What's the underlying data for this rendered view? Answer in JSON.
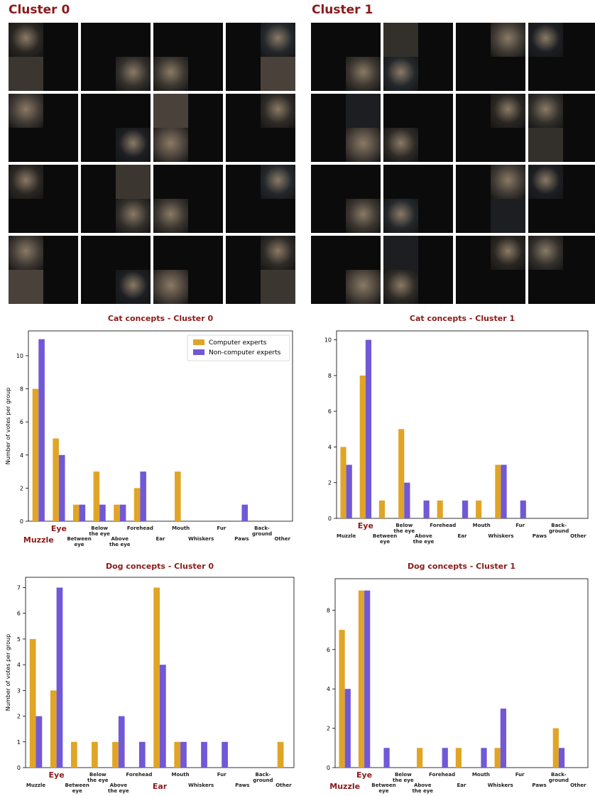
{
  "cluster_titles": [
    "Cluster 0",
    "Cluster 1"
  ],
  "colors": {
    "computer": "#e0a526",
    "noncomputer": "#7158d6",
    "highlight": "#8b1a1a"
  },
  "chart_data": [
    {
      "type": "bar",
      "title": "Cat concepts - Cluster 0",
      "ylabel": "Number of votes per group",
      "ylim": [
        0,
        11.5
      ],
      "yticks": [
        0,
        2,
        4,
        6,
        8,
        10
      ],
      "legend": "top-right",
      "categories": [
        "Muzzle",
        "Eye",
        "Between eye",
        "Below the eye",
        "Above the eye",
        "Forehead",
        "Ear",
        "Mouth",
        "Whiskers",
        "Fur",
        "Paws",
        "Back-ground",
        "Other"
      ],
      "highlighted": [
        "Muzzle",
        "Eye"
      ],
      "series": [
        {
          "name": "Computer experts",
          "values": [
            8,
            5,
            1,
            3,
            1,
            2,
            0,
            3,
            0,
            0,
            0,
            0,
            0
          ]
        },
        {
          "name": "Non-computer experts",
          "values": [
            11,
            4,
            1,
            1,
            1,
            3,
            0,
            0,
            0,
            0,
            1,
            0,
            0
          ]
        }
      ]
    },
    {
      "type": "bar",
      "title": "Cat concepts - Cluster 1",
      "ylabel": "",
      "ylim": [
        0,
        10.5
      ],
      "yticks": [
        0,
        2,
        4,
        6,
        8,
        10
      ],
      "categories": [
        "Muzzle",
        "Eye",
        "Between eye",
        "Below the eye",
        "Above the eye",
        "Forehead",
        "Ear",
        "Mouth",
        "Whiskers",
        "Fur",
        "Paws",
        "Back-ground",
        "Other"
      ],
      "highlighted": [
        "Eye"
      ],
      "series": [
        {
          "values": [
            4,
            8,
            1,
            5,
            0,
            1,
            0,
            1,
            3,
            0,
            0,
            0,
            0
          ]
        },
        {
          "values": [
            3,
            10,
            0,
            2,
            1,
            0,
            1,
            0,
            3,
            1,
            0,
            0,
            0
          ]
        }
      ]
    },
    {
      "type": "bar",
      "title": "Dog concepts - Cluster 0",
      "ylabel": "Number of votes per group",
      "ylim": [
        0,
        7.4
      ],
      "yticks": [
        0,
        1,
        2,
        3,
        4,
        5,
        6,
        7
      ],
      "categories": [
        "Muzzle",
        "Eye",
        "Between eye",
        "Below the eye",
        "Above the eye",
        "Forehead",
        "Ear",
        "Mouth",
        "Whiskers",
        "Fur",
        "Paws",
        "Back-ground",
        "Other"
      ],
      "highlighted": [
        "Eye",
        "Ear"
      ],
      "series": [
        {
          "values": [
            5,
            3,
            1,
            1,
            1,
            0,
            7,
            1,
            0,
            0,
            0,
            0,
            1
          ]
        },
        {
          "values": [
            2,
            7,
            0,
            0,
            2,
            1,
            4,
            1,
            1,
            1,
            0,
            0,
            0
          ]
        }
      ]
    },
    {
      "type": "bar",
      "title": "Dog concepts - Cluster 1",
      "ylabel": "",
      "ylim": [
        0,
        9.6
      ],
      "yticks": [
        0,
        2,
        4,
        6,
        8
      ],
      "categories": [
        "Muzzle",
        "Eye",
        "Between eye",
        "Below the eye",
        "Above the eye",
        "Forehead",
        "Ear",
        "Mouth",
        "Whiskers",
        "Fur",
        "Paws",
        "Back-ground",
        "Other"
      ],
      "highlighted": [
        "Muzzle",
        "Eye"
      ],
      "series": [
        {
          "values": [
            7,
            9,
            0,
            0,
            1,
            0,
            1,
            0,
            1,
            0,
            0,
            2,
            0
          ]
        },
        {
          "values": [
            4,
            9,
            1,
            0,
            0,
            1,
            0,
            1,
            3,
            0,
            0,
            1,
            0
          ]
        }
      ]
    }
  ]
}
